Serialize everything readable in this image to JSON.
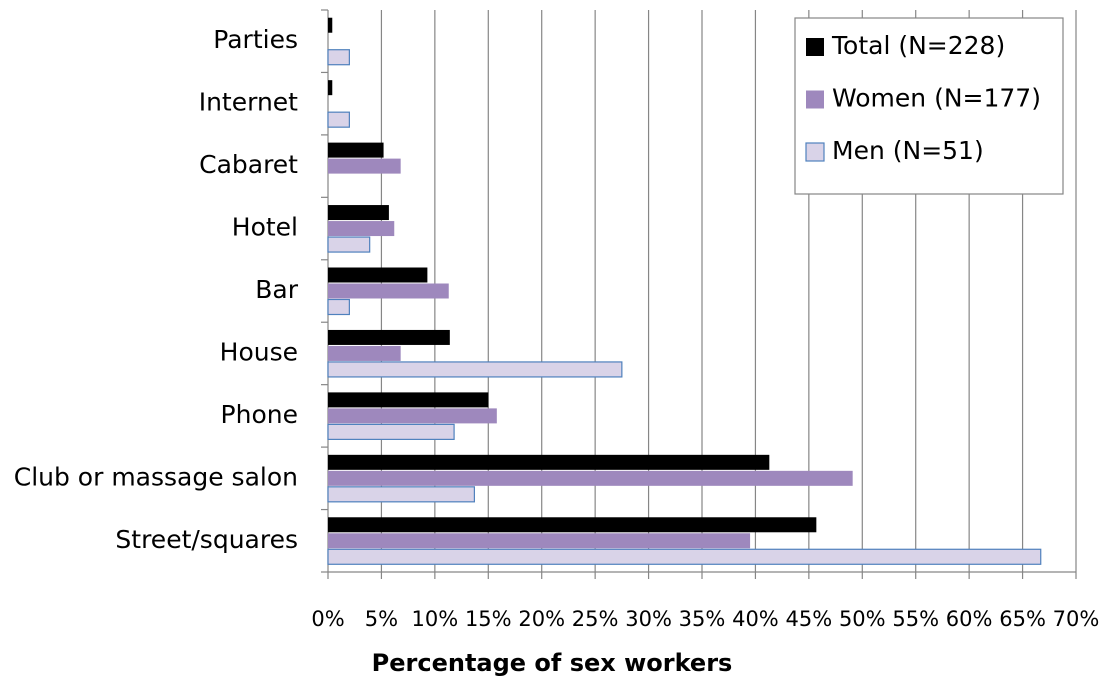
{
  "chart_data": {
    "type": "barh",
    "xlabel": "Percentage of sex workers",
    "categories": [
      "Parties",
      "Internet",
      "Cabaret",
      "Hotel",
      "Bar",
      "House",
      "Phone",
      "Club or massage salon",
      "Street/squares"
    ],
    "series": [
      {
        "name": "Total (N=228)",
        "color": "#000000",
        "values": [
          0.4,
          0.4,
          5.2,
          5.7,
          9.3,
          11.4,
          15.0,
          41.3,
          45.7
        ]
      },
      {
        "name": "Women (N=177)",
        "color": "#9e88bd",
        "values": [
          0,
          0,
          6.8,
          6.2,
          11.3,
          6.8,
          15.8,
          49.1,
          39.5
        ]
      },
      {
        "name": "Men (N=51)",
        "color": "#d9d3e8",
        "edgecolor": "#4f81bd",
        "values": [
          2.0,
          2.0,
          0,
          3.9,
          2.0,
          27.5,
          11.8,
          13.7,
          66.7
        ]
      }
    ],
    "xlim": [
      0,
      70
    ],
    "xticks": [
      {
        "value": 0,
        "label": "0%"
      },
      {
        "value": 5,
        "label": "5%"
      },
      {
        "value": 10,
        "label": "10%"
      },
      {
        "value": 15,
        "label": "15%"
      },
      {
        "value": 20,
        "label": "20%"
      },
      {
        "value": 25,
        "label": "25%"
      },
      {
        "value": 30,
        "label": "30%"
      },
      {
        "value": 35,
        "label": "35%"
      },
      {
        "value": 40,
        "label": "40%"
      },
      {
        "value": 45,
        "label": "45%"
      },
      {
        "value": 50,
        "label": "50%"
      },
      {
        "value": 55,
        "label": "55%"
      },
      {
        "value": 60,
        "label": "60%"
      },
      {
        "value": 65,
        "label": "65%"
      },
      {
        "value": 70,
        "label": "70%"
      }
    ],
    "grid": true,
    "legend": "upper right"
  }
}
